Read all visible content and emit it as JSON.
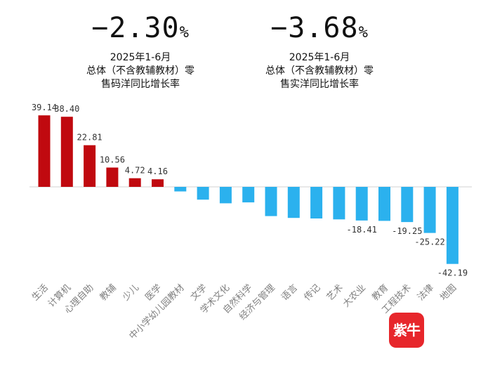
{
  "summary": [
    {
      "value": "−2.30",
      "unit": "%",
      "lines": [
        "2025年1-6月",
        "总体（不含教辅教材）零",
        "售码洋同比增长率"
      ]
    },
    {
      "value": "−3.68",
      "unit": "%",
      "lines": [
        "2025年1-6月",
        "总体（不含教辅教材）零",
        "售实洋同比增长率"
      ]
    }
  ],
  "logo_text": "紫牛",
  "colors": {
    "positive": "#c0090f",
    "negative": "#2bb1ee",
    "label": "#7f7f7f"
  },
  "chart_data": {
    "type": "bar",
    "categories": [
      "生活",
      "计算机",
      "心理自助",
      "教辅",
      "少儿",
      "医学",
      "中小学幼儿园教材",
      "文学",
      "学术文化",
      "自然科学",
      "经济与管理",
      "语言",
      "传记",
      "艺术",
      "大农业",
      "教育",
      "工程技术",
      "法律",
      "地图"
    ],
    "values": [
      39.14,
      38.4,
      22.81,
      10.56,
      4.72,
      4.16,
      -2.5,
      -7.0,
      -9.0,
      -8.5,
      -16.0,
      -17.0,
      -17.3,
      -17.8,
      -18.41,
      -18.6,
      -19.25,
      -25.22,
      -42.19
    ],
    "data_labels": [
      "39.14",
      "38.40",
      "22.81",
      "10.56",
      "4.72",
      "4.16",
      "",
      "",
      "",
      "",
      "",
      "",
      "",
      "",
      "-18.41",
      "",
      "-19.25",
      "-25.22",
      "-42.19"
    ],
    "title": "",
    "xlabel": "",
    "ylabel": "",
    "ylim": [
      -45,
      45
    ],
    "grid": false,
    "legend": "none"
  }
}
